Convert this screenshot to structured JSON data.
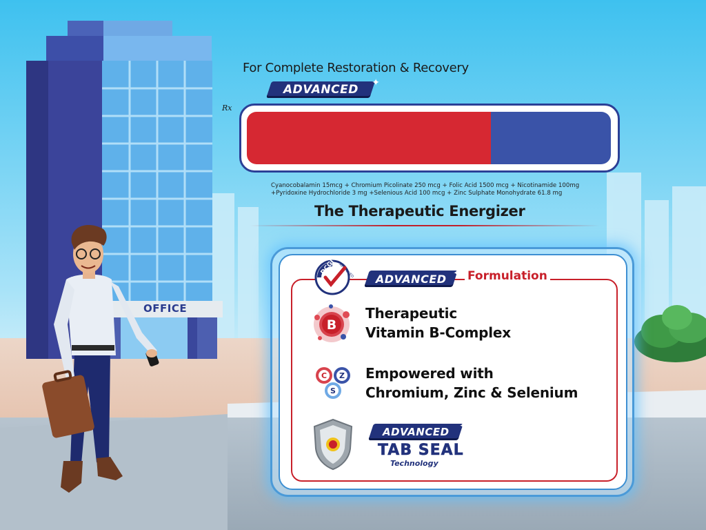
{
  "ad": {
    "tagline": "For Complete Restoration & Recovery",
    "rx_symbol": "Rx",
    "badge_text": "ADVANCED",
    "composition_line1": "Cyanocobalamin 15mcg + Chromium Picolinate 250 mcg + Folic Acid 1500 mcg + Nicotinamide 100mg",
    "composition_line2": "+Pyridoxine Hydrochloride 3 mg +Selenious Acid 100 mcg + Zinc Sulphate Monohydrate 61.8 mg",
    "subtitle": "The Therapeutic Energizer"
  },
  "panel": {
    "dcgi_label": "DCGI",
    "approved_label": "APPROVED",
    "formulation_label": "Formulation",
    "feature1_line1": "Therapeutic",
    "feature1_line2": "Vitamin B-Complex",
    "b_icon_letter": "B",
    "feature2_line1": "Empowered with",
    "feature2_line2": "Chromium, Zinc & Selenium",
    "czs_letters": [
      "C",
      "Z",
      "S"
    ],
    "tabseal_title": "TAB SEAL",
    "tabseal_sub": "Technology"
  },
  "scene": {
    "office_sign": "OFFICE"
  },
  "colors": {
    "brand_red": "#d62832",
    "brand_blue": "#3a53a8",
    "navy": "#22327c",
    "sky": "#3fc3f0"
  },
  "icons": [
    "dcgi-approved-icon",
    "vitamin-b-icon",
    "czs-molecule-icon",
    "tab-seal-shield-icon"
  ]
}
